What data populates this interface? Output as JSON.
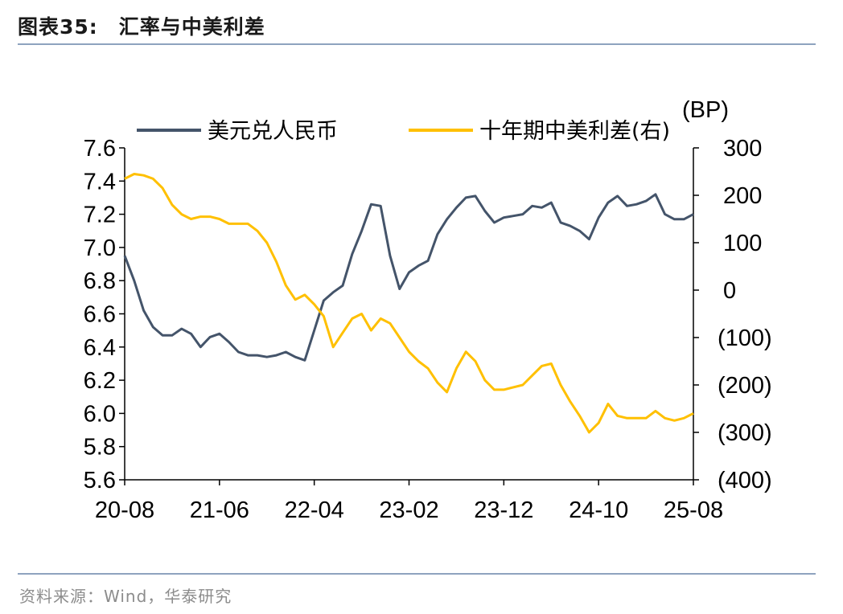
{
  "figure": {
    "label": "图表35:",
    "title": "汇率与中美利差",
    "source": "资料来源：Wind，华泰研究"
  },
  "chart_data": {
    "type": "line",
    "x_tick_labels": [
      "20-08",
      "21-06",
      "22-04",
      "23-02",
      "23-12",
      "24-10",
      "25-08"
    ],
    "x_range_months": [
      0,
      60
    ],
    "left_axis": {
      "ticks": [
        5.6,
        5.8,
        6.0,
        6.2,
        6.4,
        6.6,
        6.8,
        7.0,
        7.2,
        7.4,
        7.6
      ],
      "tick_labels": [
        "5.6",
        "5.8",
        "6.0",
        "6.2",
        "6.4",
        "6.6",
        "6.8",
        "7.0",
        "7.2",
        "7.4",
        "7.6"
      ],
      "range": [
        5.6,
        7.6
      ]
    },
    "right_axis": {
      "unit_label": "(BP)",
      "ticks": [
        -400,
        -300,
        -200,
        -100,
        0,
        100,
        200,
        300
      ],
      "tick_labels": [
        "(400)",
        "(300)",
        "(200)",
        "(100)",
        "0",
        "100",
        "200",
        "300"
      ],
      "range": [
        -400,
        300
      ]
    },
    "legend": {
      "position": "top"
    },
    "series": [
      {
        "name": "美元兑人民币",
        "axis": "left",
        "color": "#44546a",
        "x": [
          0,
          1,
          2,
          3,
          4,
          5,
          6,
          7,
          8,
          9,
          10,
          11,
          12,
          13,
          14,
          15,
          16,
          17,
          18,
          19,
          20,
          21,
          22,
          23,
          24,
          25,
          26,
          27,
          28,
          29,
          30,
          31,
          32,
          33,
          34,
          35,
          36,
          37,
          38,
          39,
          40,
          41,
          42,
          43,
          44,
          45,
          46,
          47,
          48,
          49,
          50,
          51,
          52,
          53,
          54,
          55,
          56,
          57,
          58,
          59,
          60
        ],
        "values": [
          6.95,
          6.8,
          6.62,
          6.52,
          6.47,
          6.47,
          6.51,
          6.48,
          6.4,
          6.46,
          6.48,
          6.43,
          6.37,
          6.35,
          6.35,
          6.34,
          6.35,
          6.37,
          6.34,
          6.32,
          6.5,
          6.68,
          6.73,
          6.77,
          6.96,
          7.1,
          7.26,
          7.25,
          6.95,
          6.75,
          6.85,
          6.89,
          6.92,
          7.08,
          7.17,
          7.24,
          7.3,
          7.31,
          7.22,
          7.15,
          7.18,
          7.19,
          7.2,
          7.25,
          7.24,
          7.27,
          7.15,
          7.13,
          7.1,
          7.05,
          7.18,
          7.27,
          7.31,
          7.25,
          7.26,
          7.28,
          7.32,
          7.2,
          7.17,
          7.17,
          7.2
        ]
      },
      {
        "name": "十年期中美利差(右)",
        "axis": "right",
        "color": "#ffc000",
        "x": [
          0,
          1,
          2,
          3,
          4,
          5,
          6,
          7,
          8,
          9,
          10,
          11,
          12,
          13,
          14,
          15,
          16,
          17,
          18,
          19,
          20,
          21,
          22,
          23,
          24,
          25,
          26,
          27,
          28,
          29,
          30,
          31,
          32,
          33,
          34,
          35,
          36,
          37,
          38,
          39,
          40,
          41,
          42,
          43,
          44,
          45,
          46,
          47,
          48,
          49,
          50,
          51,
          52,
          53,
          54,
          55,
          56,
          57,
          58,
          59,
          60
        ],
        "values": [
          235,
          245,
          242,
          235,
          215,
          180,
          160,
          150,
          155,
          155,
          150,
          140,
          140,
          140,
          125,
          100,
          60,
          10,
          -20,
          -10,
          -30,
          -55,
          -120,
          -90,
          -60,
          -50,
          -85,
          -60,
          -70,
          -100,
          -130,
          -150,
          -165,
          -195,
          -215,
          -165,
          -130,
          -150,
          -190,
          -210,
          -210,
          -205,
          -200,
          -180,
          -160,
          -155,
          -200,
          -235,
          -265,
          -300,
          -280,
          -240,
          -265,
          -270,
          -270,
          -270,
          -255,
          -270,
          -275,
          -270,
          -260
        ]
      }
    ]
  }
}
